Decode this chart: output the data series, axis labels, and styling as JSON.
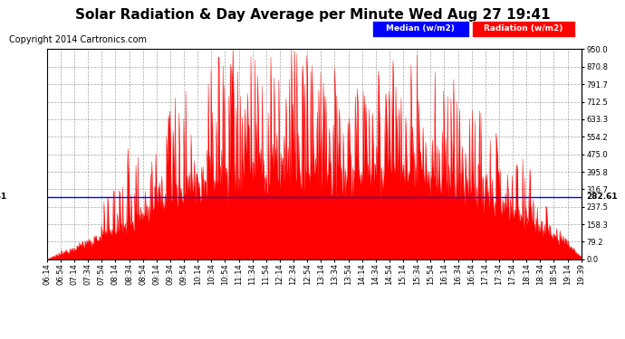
{
  "title": "Solar Radiation & Day Average per Minute Wed Aug 27 19:41",
  "copyright": "Copyright 2014 Cartronics.com",
  "ylabel_right_labels": [
    "0.0",
    "79.2",
    "158.3",
    "237.5",
    "316.7",
    "395.8",
    "475.0",
    "554.2",
    "633.3",
    "712.5",
    "791.7",
    "870.8",
    "950.0"
  ],
  "ylabel_right_values": [
    0.0,
    79.2,
    158.3,
    237.5,
    316.7,
    395.8,
    475.0,
    554.2,
    633.3,
    712.5,
    791.7,
    870.8,
    950.0
  ],
  "median_line": 282.61,
  "median_label": "282.61",
  "ymax": 950.0,
  "ymin": 0.0,
  "background_color": "#ffffff",
  "plot_bg_color": "#ffffff",
  "radiation_color": "#ff0000",
  "median_color": "#0000ff",
  "legend_median_bg": "#0000ff",
  "legend_radiation_bg": "#ff0000",
  "title_fontsize": 11,
  "copyright_fontsize": 7,
  "tick_label_fontsize": 6,
  "x_tick_labels": [
    "06:14",
    "06:54",
    "07:14",
    "07:34",
    "07:54",
    "08:14",
    "08:34",
    "08:54",
    "09:14",
    "09:34",
    "09:54",
    "10:14",
    "10:34",
    "10:54",
    "11:14",
    "11:34",
    "11:54",
    "12:14",
    "12:34",
    "12:54",
    "13:14",
    "13:34",
    "13:54",
    "14:14",
    "14:34",
    "14:54",
    "15:14",
    "15:34",
    "15:54",
    "16:14",
    "16:34",
    "16:54",
    "17:14",
    "17:34",
    "17:54",
    "18:14",
    "18:34",
    "18:54",
    "19:14",
    "19:39"
  ]
}
